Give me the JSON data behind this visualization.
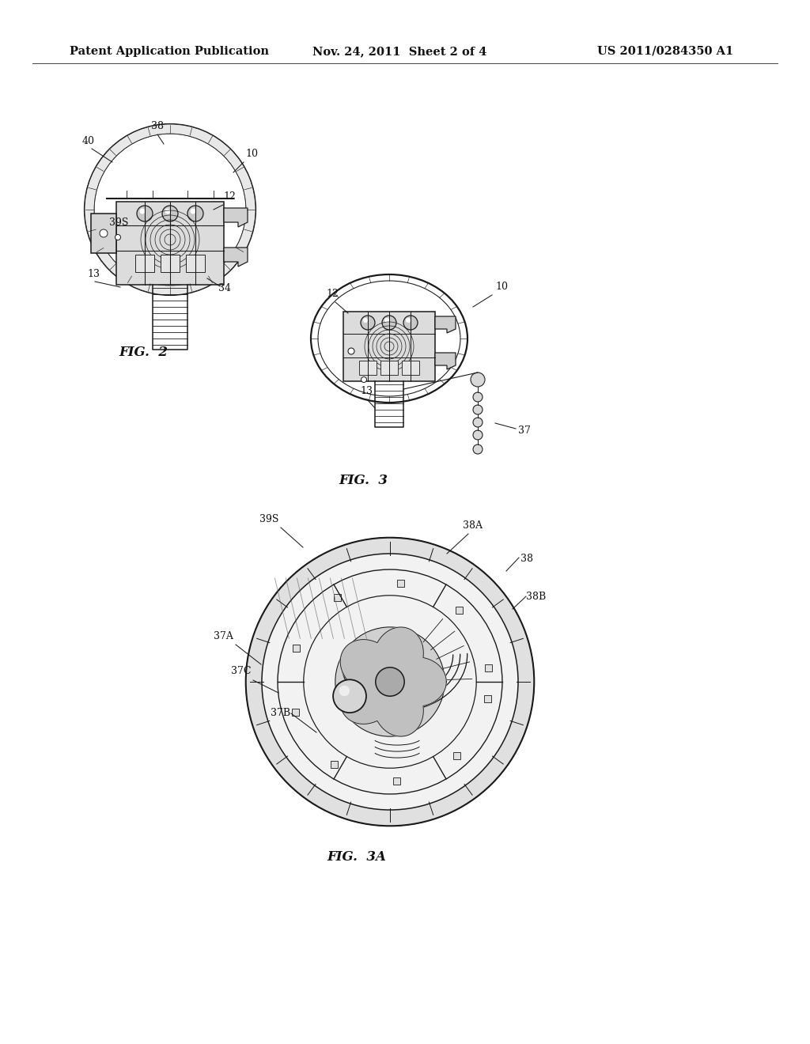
{
  "background_color": "#ffffff",
  "header_left": "Patent Application Publication",
  "header_mid": "Nov. 24, 2011  Sheet 2 of 4",
  "header_right": "US 2011/0284350 A1",
  "fig2_label": "FIG.  2",
  "fig3_label": "FIG.  3",
  "fig3a_label": "FIG.  3A",
  "text_color": "#111111",
  "line_color": "#1a1a1a"
}
